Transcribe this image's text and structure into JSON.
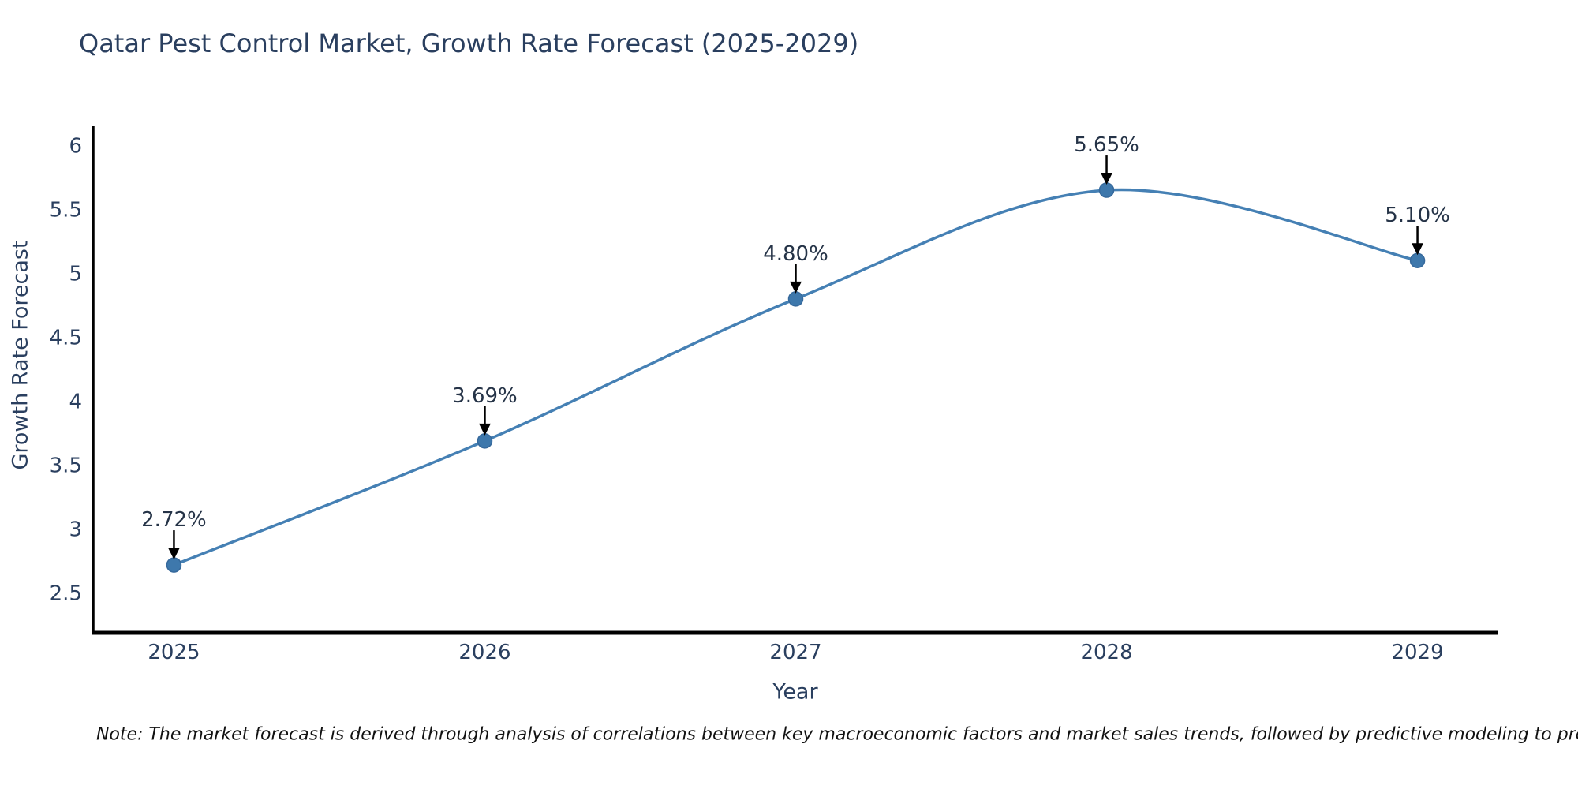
{
  "title": "Qatar Pest Control Market, Growth Rate Forecast (2025-2029)",
  "note": "Note: The market forecast is derived through analysis of correlations between key macroeconomic factors and market sales trends, followed by predictive modeling to project future sales",
  "chart_data": {
    "type": "line",
    "line_shape": "spline",
    "x": [
      2025,
      2026,
      2027,
      2028,
      2029
    ],
    "y": [
      2.72,
      3.69,
      4.8,
      5.65,
      5.1
    ],
    "point_labels": [
      "2.72%",
      "3.69%",
      "4.80%",
      "5.65%",
      "5.10%"
    ],
    "title": "Qatar Pest Control Market, Growth Rate Forecast (2025-2029)",
    "xlabel": "Year",
    "ylabel": "Growth Rate Forecast",
    "xtick_labels": [
      "2025",
      "2026",
      "2027",
      "2028",
      "2029"
    ],
    "yticks": [
      2.5,
      3,
      3.5,
      4,
      4.5,
      5,
      5.5,
      6
    ],
    "xlim": [
      2024.74,
      2029.26
    ],
    "ylim": [
      2.19,
      6.15
    ],
    "grid": false,
    "legend": "none",
    "colors": {
      "line": "#4580b4",
      "marker_fill": "#3e78ac",
      "marker_edge": "#36699c",
      "axis_line": "#000000",
      "tick_text": "#2a3f5f",
      "annotation_text": "#253347",
      "arrow": "#000000",
      "note_text": "#111111",
      "background": "#ffffff"
    }
  }
}
